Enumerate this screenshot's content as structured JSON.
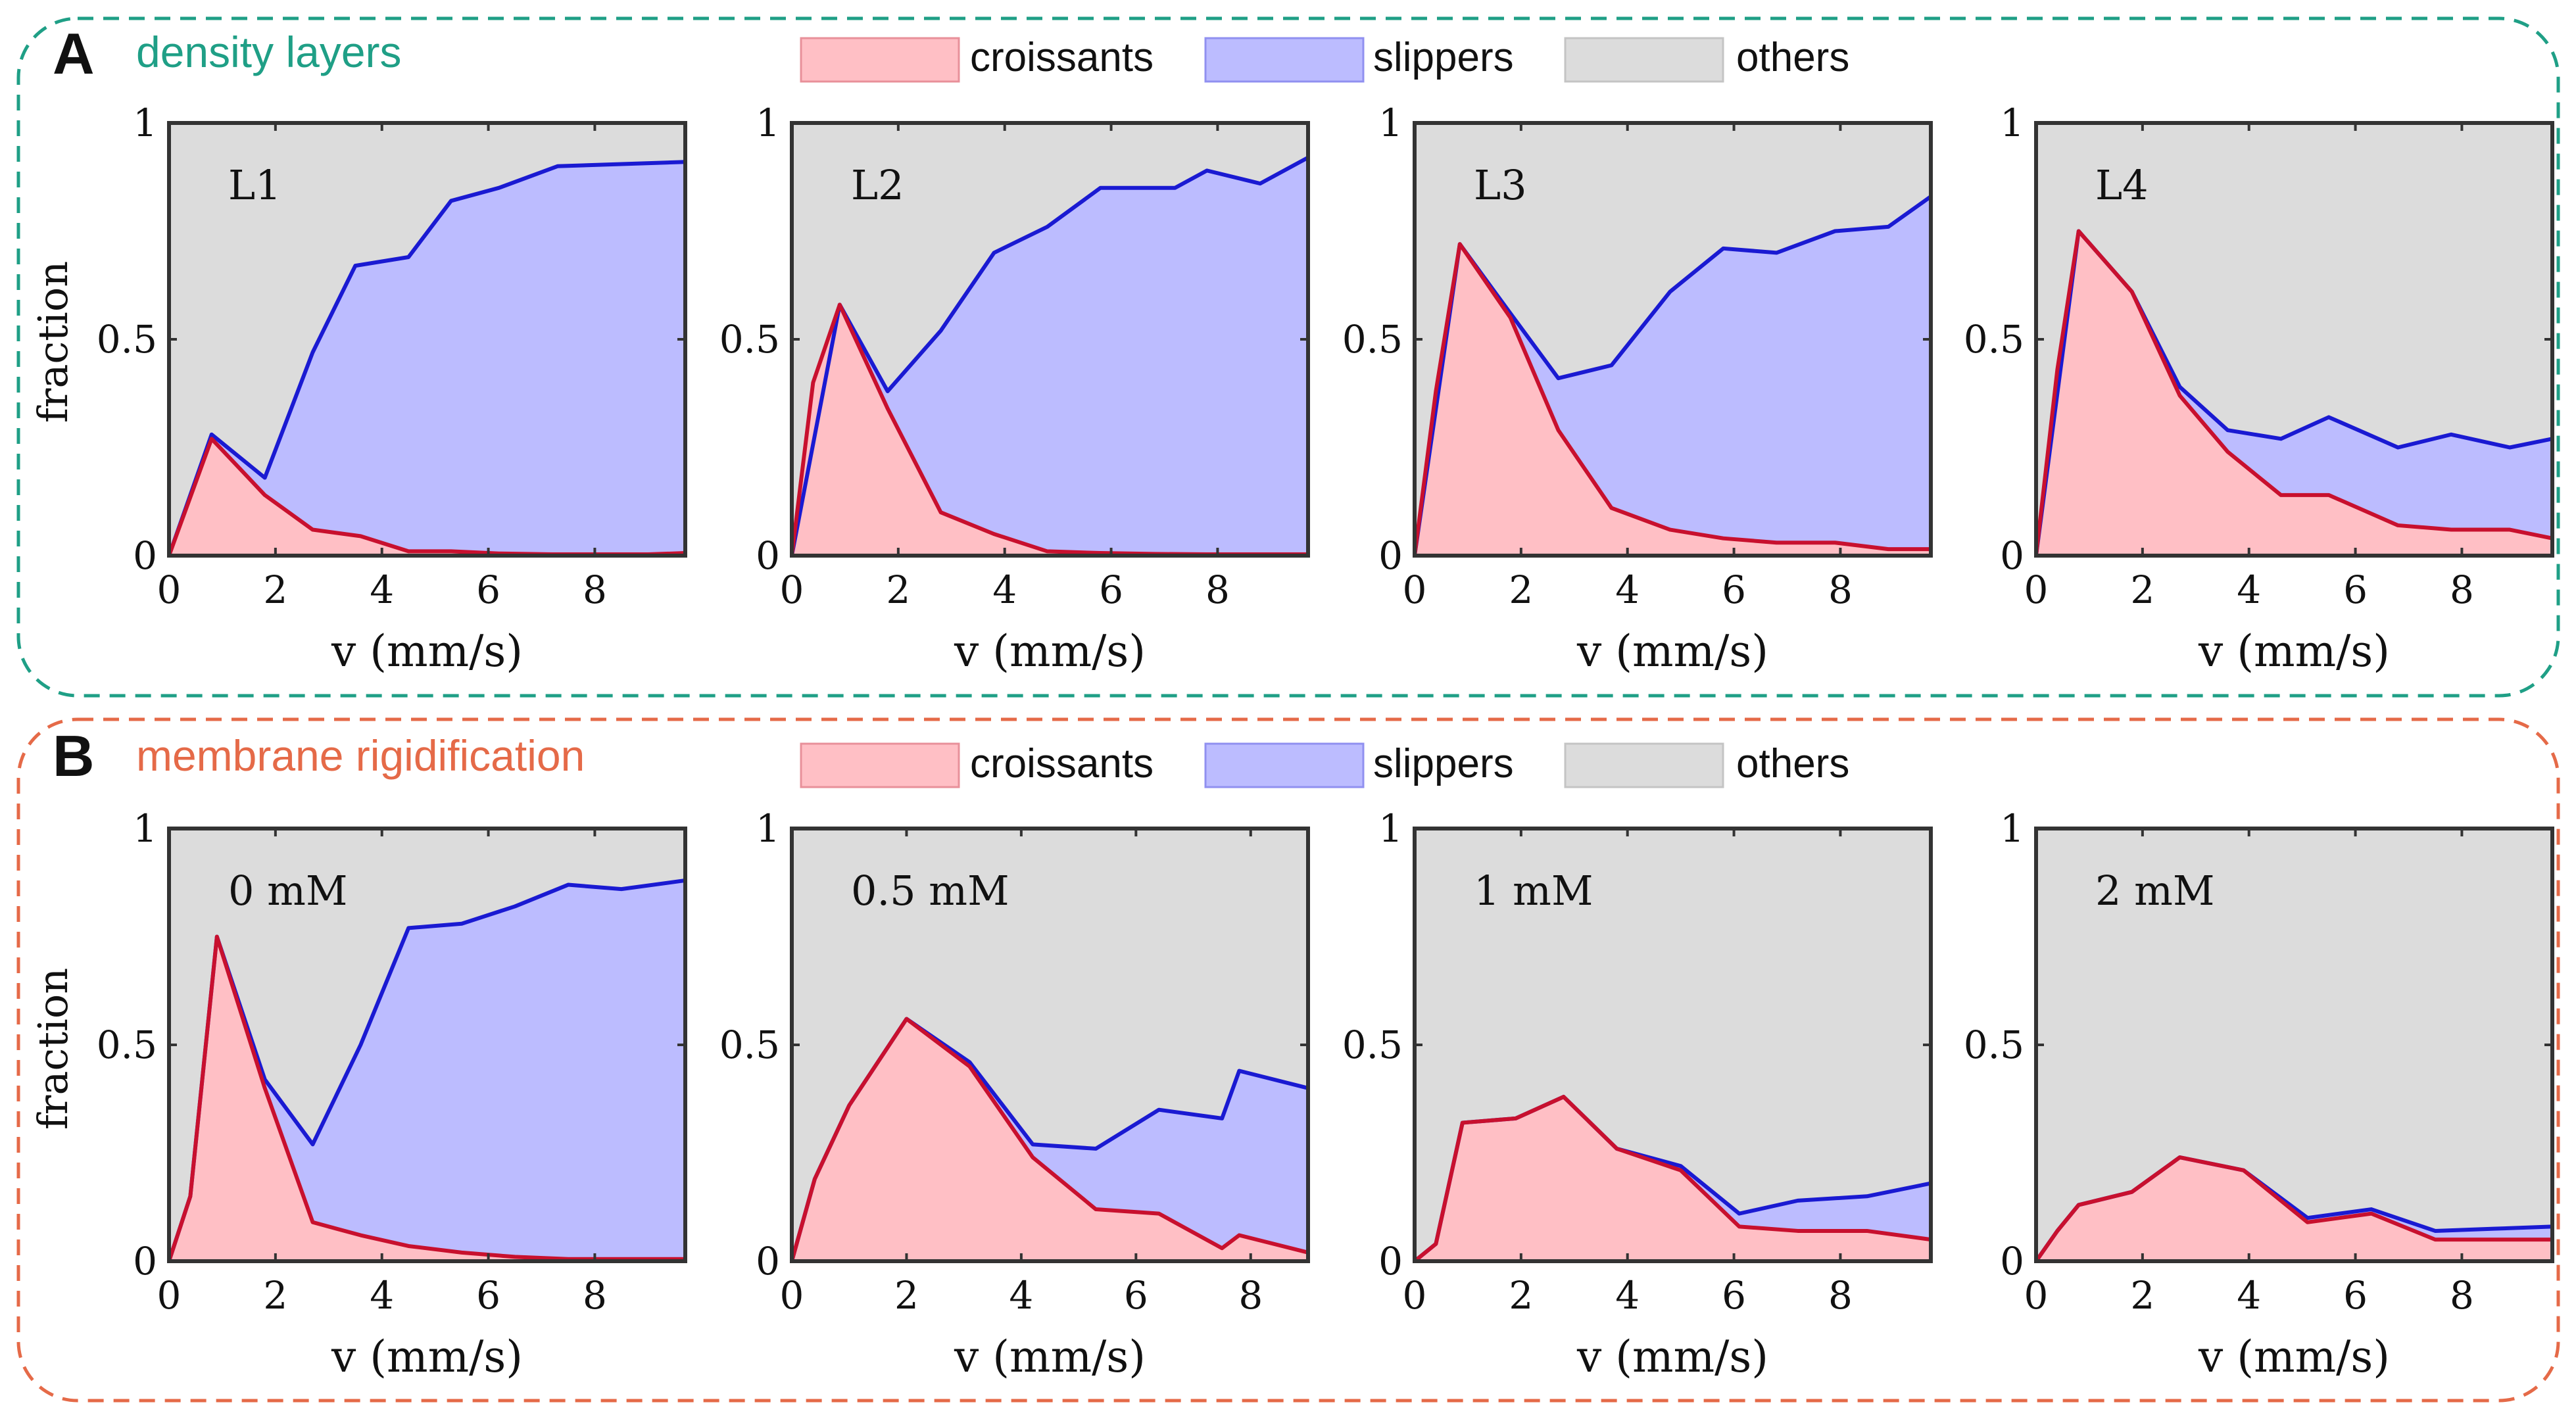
{
  "colors": {
    "croissants_fill": "#ffbfc5",
    "croissants_line": "#c8102e",
    "slippers_fill": "#bcbcff",
    "slippers_line": "#1a1ad2",
    "others_fill": "#dcdcdc",
    "axes": "#333333",
    "panel_a_title": "#1f9f86",
    "panel_b_title": "#e56a48"
  },
  "legend": [
    "croissants",
    "slippers",
    "others"
  ],
  "panels": [
    {
      "letter": "A",
      "title": "density layers"
    },
    {
      "letter": "B",
      "title": "membrane rigidification"
    }
  ],
  "axis_labels": {
    "x": "v (mm/s)",
    "y": "fraction"
  },
  "x_ticks": [
    "0",
    "2",
    "4",
    "6",
    "8"
  ],
  "y_ticks": [
    "0",
    "0.5",
    "1"
  ],
  "chart_data": [
    {
      "type": "area",
      "label": "L1",
      "xlim": [
        0,
        9.7
      ],
      "ylim": [
        0,
        1
      ],
      "croissants": {
        "x": [
          0,
          0.8,
          1.8,
          2.7,
          3.6,
          4.5,
          5.3,
          6.2,
          7.2,
          8.1,
          9.0,
          9.7
        ],
        "y": [
          0,
          0.27,
          0.14,
          0.06,
          0.045,
          0.01,
          0.01,
          0.005,
          0.003,
          0.003,
          0.003,
          0.006
        ]
      },
      "slippers": {
        "x": [
          0,
          0.8,
          1.8,
          2.7,
          3.5,
          4.5,
          5.3,
          6.2,
          7.3,
          9.7
        ],
        "y": [
          0,
          0.28,
          0.18,
          0.47,
          0.67,
          0.69,
          0.82,
          0.85,
          0.9,
          0.91
        ]
      }
    },
    {
      "type": "area",
      "label": "L2",
      "xlim": [
        0,
        9.7
      ],
      "ylim": [
        0,
        1
      ],
      "croissants": {
        "x": [
          0,
          0.4,
          0.9,
          1.8,
          2.8,
          3.8,
          4.8,
          5.8,
          6.8,
          7.8,
          8.8,
          9.7
        ],
        "y": [
          0,
          0.4,
          0.58,
          0.34,
          0.1,
          0.05,
          0.01,
          0.006,
          0.004,
          0.003,
          0.003,
          0.003
        ]
      },
      "slippers": {
        "x": [
          0,
          0.9,
          1.8,
          2.8,
          3.8,
          4.8,
          5.8,
          6.8,
          7.2,
          7.8,
          8.8,
          9.7
        ],
        "y": [
          0,
          0.58,
          0.38,
          0.52,
          0.7,
          0.76,
          0.85,
          0.85,
          0.85,
          0.89,
          0.86,
          0.92
        ]
      }
    },
    {
      "type": "area",
      "label": "L3",
      "xlim": [
        0,
        9.7
      ],
      "ylim": [
        0,
        1
      ],
      "croissants": {
        "x": [
          0,
          0.4,
          0.85,
          1.8,
          2.7,
          3.7,
          4.8,
          5.8,
          6.8,
          7.9,
          8.9,
          9.7
        ],
        "y": [
          0,
          0.38,
          0.72,
          0.55,
          0.29,
          0.11,
          0.06,
          0.04,
          0.03,
          0.03,
          0.015,
          0.015
        ]
      },
      "slippers": {
        "x": [
          0,
          0.85,
          1.8,
          2.7,
          3.7,
          4.8,
          5.8,
          6.8,
          7.9,
          8.9,
          9.7
        ],
        "y": [
          0,
          0.72,
          0.56,
          0.41,
          0.44,
          0.61,
          0.71,
          0.7,
          0.75,
          0.76,
          0.83
        ]
      }
    },
    {
      "type": "area",
      "label": "L4",
      "xlim": [
        0,
        9.7
      ],
      "ylim": [
        0,
        1
      ],
      "croissants": {
        "x": [
          0,
          0.4,
          0.8,
          1.8,
          2.7,
          3.6,
          4.6,
          5.5,
          6.8,
          7.8,
          8.9,
          9.7
        ],
        "y": [
          0,
          0.43,
          0.75,
          0.61,
          0.37,
          0.24,
          0.14,
          0.14,
          0.07,
          0.06,
          0.06,
          0.04
        ]
      },
      "slippers": {
        "x": [
          0,
          0.8,
          1.8,
          2.7,
          3.6,
          4.6,
          5.5,
          6.8,
          7.8,
          8.9,
          9.7
        ],
        "y": [
          0,
          0.75,
          0.61,
          0.39,
          0.29,
          0.27,
          0.32,
          0.25,
          0.28,
          0.25,
          0.27
        ]
      }
    },
    {
      "type": "area",
      "label": "0 mM",
      "xlim": [
        0,
        9.7
      ],
      "ylim": [
        0,
        1
      ],
      "croissants": {
        "x": [
          0,
          0.4,
          0.9,
          1.8,
          2.7,
          3.6,
          4.5,
          5.5,
          6.5,
          7.5,
          8.5,
          9.7
        ],
        "y": [
          0,
          0.15,
          0.75,
          0.4,
          0.09,
          0.06,
          0.035,
          0.02,
          0.01,
          0.005,
          0.005,
          0.005
        ]
      },
      "slippers": {
        "x": [
          0,
          0.4,
          0.9,
          1.8,
          2.7,
          3.6,
          4.5,
          5.5,
          6.5,
          7.5,
          8.5,
          9.7
        ],
        "y": [
          0,
          0.15,
          0.75,
          0.42,
          0.27,
          0.5,
          0.77,
          0.78,
          0.82,
          0.87,
          0.86,
          0.88
        ]
      }
    },
    {
      "type": "area",
      "label": "0.5 mM",
      "xlim": [
        0,
        9
      ],
      "ylim": [
        0,
        1
      ],
      "croissants": {
        "x": [
          0,
          0.4,
          1.0,
          2.0,
          3.1,
          4.2,
          5.3,
          6.4,
          7.5,
          7.8,
          9.0
        ],
        "y": [
          0,
          0.19,
          0.36,
          0.56,
          0.45,
          0.24,
          0.12,
          0.11,
          0.03,
          0.06,
          0.02
        ]
      },
      "slippers": {
        "x": [
          0,
          0.4,
          1.0,
          2.0,
          3.1,
          4.2,
          5.3,
          6.4,
          7.5,
          7.8,
          9.0
        ],
        "y": [
          0,
          0.19,
          0.36,
          0.56,
          0.46,
          0.27,
          0.26,
          0.35,
          0.33,
          0.44,
          0.4
        ]
      }
    },
    {
      "type": "area",
      "label": "1 mM",
      "xlim": [
        0,
        9.7
      ],
      "ylim": [
        0,
        1
      ],
      "croissants": {
        "x": [
          0,
          0.4,
          0.9,
          1.9,
          2.8,
          3.8,
          5.0,
          6.1,
          7.2,
          8.5,
          9.7
        ],
        "y": [
          0,
          0.04,
          0.32,
          0.33,
          0.38,
          0.26,
          0.21,
          0.08,
          0.07,
          0.07,
          0.05
        ]
      },
      "slippers": {
        "x": [
          0,
          0.4,
          0.9,
          1.9,
          2.8,
          3.8,
          5.0,
          6.1,
          7.2,
          8.5,
          9.7
        ],
        "y": [
          0,
          0.04,
          0.32,
          0.33,
          0.38,
          0.26,
          0.22,
          0.11,
          0.14,
          0.15,
          0.18
        ]
      }
    },
    {
      "type": "area",
      "label": "2 mM",
      "xlim": [
        0,
        9.7
      ],
      "ylim": [
        0,
        1
      ],
      "croissants": {
        "x": [
          0,
          0.4,
          0.8,
          1.8,
          2.7,
          3.9,
          5.1,
          6.3,
          7.5,
          8.6,
          9.7
        ],
        "y": [
          0,
          0.07,
          0.13,
          0.16,
          0.24,
          0.21,
          0.09,
          0.11,
          0.05,
          0.05,
          0.05
        ]
      },
      "slippers": {
        "x": [
          0,
          0.4,
          0.8,
          1.8,
          2.7,
          3.9,
          5.1,
          6.3,
          7.5,
          8.6,
          9.7
        ],
        "y": [
          0,
          0.07,
          0.13,
          0.16,
          0.24,
          0.21,
          0.1,
          0.12,
          0.07,
          0.075,
          0.08
        ]
      }
    }
  ]
}
